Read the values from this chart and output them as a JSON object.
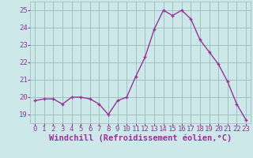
{
  "x": [
    0,
    1,
    2,
    3,
    4,
    5,
    6,
    7,
    8,
    9,
    10,
    11,
    12,
    13,
    14,
    15,
    16,
    17,
    18,
    19,
    20,
    21,
    22,
    23
  ],
  "y": [
    19.8,
    19.9,
    19.9,
    19.6,
    20.0,
    20.0,
    19.9,
    19.6,
    19.0,
    19.8,
    20.0,
    21.2,
    22.3,
    23.9,
    25.0,
    24.7,
    25.0,
    24.5,
    23.3,
    22.6,
    21.9,
    20.9,
    19.6,
    18.7
  ],
  "line_color": "#993399",
  "marker_color": "#993399",
  "bg_color": "#cce8e8",
  "grid_color": "#99bbbb",
  "xlabel": "Windchill (Refroidissement éolien,°C)",
  "xlabel_color": "#993399",
  "ylim": [
    18.5,
    25.5
  ],
  "yticks": [
    19,
    20,
    21,
    22,
    23,
    24,
    25
  ],
  "xticks": [
    0,
    1,
    2,
    3,
    4,
    5,
    6,
    7,
    8,
    9,
    10,
    11,
    12,
    13,
    14,
    15,
    16,
    17,
    18,
    19,
    20,
    21,
    22,
    23
  ],
  "tick_label_color": "#993399",
  "tick_label_fontsize": 6.5,
  "xlabel_fontsize": 7.5,
  "line_width": 1.0,
  "marker_size": 2.5
}
